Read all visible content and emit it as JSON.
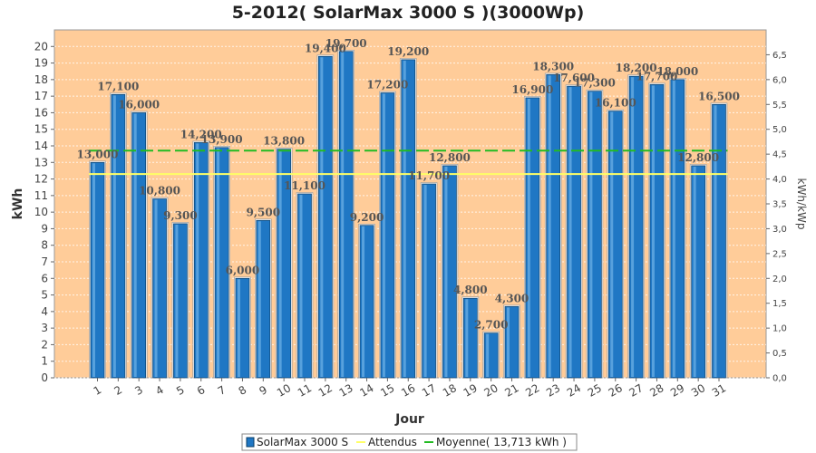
{
  "chart_data": {
    "type": "bar",
    "title": "5-2012( SolarMax 3000 S )(3000Wp)",
    "xlabel": "Jour",
    "ylabel": "kWh",
    "y2label": "kWh/kWp",
    "ylim": [
      0,
      21
    ],
    "y2lim": [
      0,
      7
    ],
    "yticks": [
      "0",
      "1",
      "2",
      "3",
      "4",
      "5",
      "6",
      "7",
      "8",
      "9",
      "10",
      "11",
      "12",
      "13",
      "14",
      "15",
      "16",
      "17",
      "18",
      "19",
      "20"
    ],
    "y2ticks": [
      "0,0",
      "0,5",
      "1,0",
      "1,5",
      "2,0",
      "2,5",
      "3,0",
      "3,5",
      "4,0",
      "4,5",
      "5,0",
      "5,5",
      "6,0",
      "6,5"
    ],
    "categories": [
      "1",
      "2",
      "3",
      "4",
      "5",
      "6",
      "7",
      "8",
      "9",
      "10",
      "11",
      "12",
      "13",
      "14",
      "15",
      "16",
      "17",
      "18",
      "19",
      "20",
      "21",
      "22",
      "23",
      "24",
      "25",
      "26",
      "27",
      "28",
      "29",
      "30",
      "31"
    ],
    "series": [
      {
        "name": "SolarMax 3000 S",
        "color": "#1f77c4",
        "values": [
          13.0,
          17.1,
          16.0,
          10.8,
          9.3,
          14.2,
          13.9,
          6.0,
          9.5,
          13.8,
          11.1,
          19.4,
          19.7,
          9.2,
          17.2,
          19.2,
          11.7,
          12.8,
          4.8,
          2.7,
          4.3,
          16.9,
          18.3,
          17.6,
          17.3,
          16.1,
          18.2,
          17.7,
          18.0,
          12.8,
          16.5
        ],
        "labels": [
          "13,000",
          "17,100",
          "16,000",
          "10,800",
          "9,300",
          "14,200",
          "13,900",
          "6,000",
          "9,500",
          "13,800",
          "11,100",
          "19,400",
          "19,700",
          "9,200",
          "17,200",
          "19,200",
          "11,700",
          "12,800",
          "4,800",
          "2,700",
          "4,300",
          "16,900",
          "18,300",
          "17,600",
          "17,300",
          "16,100",
          "18,200",
          "17,700",
          "18,000",
          "12,800",
          "16,500"
        ]
      }
    ],
    "lines": [
      {
        "name": "Attendus",
        "value": 12.3,
        "color": "#ffff66",
        "style": "solid"
      },
      {
        "name": "Moyenne( 13,713 kWh )",
        "value": 13.713,
        "color": "#22bb22",
        "style": "dashed"
      }
    ],
    "background": "#ffcc99",
    "grid": true,
    "legend": "bottom"
  }
}
